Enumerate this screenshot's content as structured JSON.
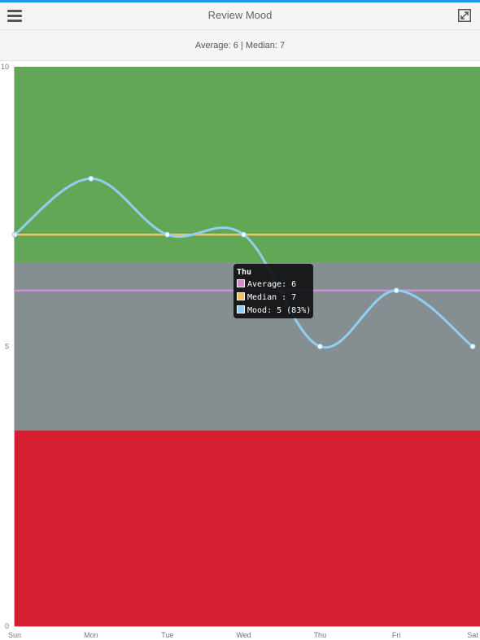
{
  "header": {
    "title": "Review Mood",
    "menu_icon": "hamburger-menu-icon",
    "expand_icon": "expand-icon"
  },
  "summary": {
    "text": "Average: 6 | Median: 7"
  },
  "colors": {
    "accent": "#1a9be6",
    "band_good": "#62a755",
    "band_neutral": "#858e91",
    "band_bad": "#d31f30",
    "average_line": "#d48cd0",
    "median_line": "#f2c266",
    "mood_line": "#8ecff3"
  },
  "chart_data": {
    "type": "line",
    "categories": [
      "Sun",
      "Mon",
      "Tue",
      "Wed",
      "Thu",
      "Fri",
      "Sat"
    ],
    "ylim": [
      0,
      10
    ],
    "y_ticks": [
      "0",
      "5",
      "10"
    ],
    "bands": [
      {
        "from": 0,
        "to": 3.5
      },
      {
        "from": 3.5,
        "to": 6.5
      },
      {
        "from": 6.5,
        "to": 10
      }
    ],
    "series": [
      {
        "name": "Average",
        "values": [
          6,
          6,
          6,
          6,
          6,
          6,
          6
        ]
      },
      {
        "name": "Median",
        "values": [
          7,
          7,
          7,
          7,
          7,
          7,
          7
        ]
      },
      {
        "name": "Mood",
        "values": [
          7,
          8,
          7,
          7,
          5,
          6,
          5
        ]
      }
    ],
    "tooltip": {
      "title": "Thu",
      "rows": [
        {
          "text": "Average: 6"
        },
        {
          "text": "Median : 7"
        },
        {
          "text": "Mood: 5 (83%)"
        }
      ]
    }
  }
}
